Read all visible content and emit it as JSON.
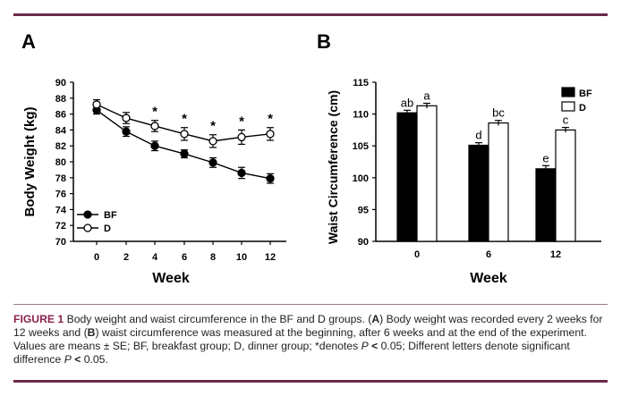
{
  "panels": {
    "a_label": "A",
    "b_label": "B"
  },
  "caption": {
    "label": "FIGURE 1",
    "p1": " Body weight and waist circumference in the BF and D groups. (",
    "a": "A",
    "p2": ") Body weight was recorded every 2 weeks for 12 weeks and (",
    "b": "B",
    "p3": ") waist circumference was measured at the beginning, after 6 weeks and at the end of the experiment. Values are means ± SE; BF, breakfast group; D, dinner group; *denotes ",
    "p_sym1": "P",
    "lt1": " < ",
    "v1": "0.05",
    "p4": "; Different letters denote significant difference ",
    "p_sym2": "P",
    "lt2": " < ",
    "v2": "0.05",
    "p5": "."
  },
  "colors": {
    "accent": "#6b2a4a",
    "caption_label": "#8b2250"
  },
  "chart_data": [
    {
      "type": "line",
      "panel": "A",
      "xlabel": "Week",
      "ylabel": "Body Weight (kg)",
      "x": [
        0,
        2,
        4,
        6,
        8,
        10,
        12
      ],
      "xticks": [
        "0",
        "2",
        "4",
        "6",
        "8",
        "10",
        "12"
      ],
      "ylim": [
        70,
        90
      ],
      "yticks": [
        "70",
        "72",
        "74",
        "76",
        "78",
        "80",
        "82",
        "84",
        "86",
        "88",
        "90"
      ],
      "legend_position": "bottom-left",
      "series": [
        {
          "name": "BF",
          "marker": "filled-circle",
          "values": [
            86.5,
            83.8,
            82.0,
            81.0,
            79.9,
            78.6,
            77.9
          ],
          "errors": [
            0.5,
            0.6,
            0.6,
            0.5,
            0.6,
            0.7,
            0.6
          ]
        },
        {
          "name": "D",
          "marker": "open-circle",
          "values": [
            87.2,
            85.5,
            84.5,
            83.5,
            82.6,
            83.1,
            83.5
          ],
          "errors": [
            0.6,
            0.7,
            0.7,
            0.8,
            0.8,
            0.9,
            0.8
          ]
        }
      ],
      "annotations": [
        {
          "x": 4,
          "text": "*"
        },
        {
          "x": 6,
          "text": "*"
        },
        {
          "x": 8,
          "text": "*"
        },
        {
          "x": 10,
          "text": "*"
        },
        {
          "x": 12,
          "text": "*"
        }
      ]
    },
    {
      "type": "bar",
      "panel": "B",
      "xlabel": "Week",
      "ylabel": "Waist Circumference (cm)",
      "categories": [
        "0",
        "6",
        "12"
      ],
      "ylim": [
        90,
        115
      ],
      "yticks": [
        "90",
        "95",
        "100",
        "105",
        "110",
        "115"
      ],
      "legend_position": "top-right",
      "series": [
        {
          "name": "BF",
          "fill": "#000000",
          "values": [
            110.2,
            105.1,
            101.4
          ],
          "errors": [
            0.4,
            0.4,
            0.5
          ],
          "labels": [
            "ab",
            "d",
            "e"
          ]
        },
        {
          "name": "D",
          "fill": "#ffffff",
          "values": [
            111.3,
            108.6,
            107.5
          ],
          "errors": [
            0.4,
            0.4,
            0.4
          ],
          "labels": [
            "a",
            "bc",
            "c"
          ]
        }
      ]
    }
  ]
}
